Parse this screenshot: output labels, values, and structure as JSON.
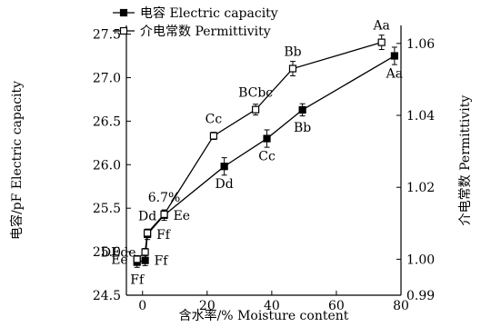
{
  "chart_data": {
    "type": "line",
    "xlabel": "含水率/% Moisture content",
    "ylabel": "电容/pF Electric capacity",
    "y2label": "介电常数 Permittivity",
    "xlim": [
      -5,
      80
    ],
    "ylim": [
      24.5,
      27.6
    ],
    "y2lim": [
      0.99,
      1.065
    ],
    "xticks": [
      0,
      20,
      40,
      60,
      80
    ],
    "yticks": [
      24.5,
      25.0,
      25.5,
      26.0,
      26.5,
      27.0,
      27.5
    ],
    "y2ticks": [
      0.99,
      1.0,
      1.02,
      1.04,
      1.06
    ],
    "ytick_labels": [
      "24.5",
      "25.0",
      "25.5",
      "26.0",
      "26.5",
      "27.0",
      "27.5"
    ],
    "y2tick_labels": [
      "0.99",
      "1.00",
      "1.02",
      "1.04",
      "1.06"
    ],
    "legend_position": "top-left",
    "series": [
      {
        "name": "电容 Electric capacity",
        "axis": "left",
        "marker": "filled-square",
        "x": [
          -1.7,
          0.8,
          1.5,
          6.7,
          25.3,
          38.5,
          49.5,
          78.0
        ],
        "y": [
          24.88,
          24.9,
          25.2,
          25.42,
          25.98,
          26.3,
          26.63,
          27.25
        ],
        "err": [
          0.06,
          0.06,
          0.06,
          0.06,
          0.1,
          0.1,
          0.07,
          0.1
        ]
      },
      {
        "name": "介电常数 Permittivity",
        "axis": "right",
        "marker": "open-square",
        "x": [
          -1.7,
          0.8,
          1.5,
          6.7,
          22.0,
          35.0,
          46.5,
          74.0
        ],
        "y": [
          1.0,
          1.002,
          1.0073,
          1.0125,
          1.0343,
          1.0416,
          1.053,
          1.0603
        ],
        "err": [
          0.001,
          0.001,
          0.001,
          0.001,
          0.001,
          0.0015,
          0.002,
          0.002
        ]
      }
    ],
    "annotations": [
      {
        "text": "Aa",
        "series": 1,
        "point": 7,
        "pos": "above"
      },
      {
        "text": "Aa",
        "series": 0,
        "point": 7,
        "pos": "below"
      },
      {
        "text": "Bb",
        "series": 1,
        "point": 6,
        "pos": "above"
      },
      {
        "text": "Bb",
        "series": 0,
        "point": 6,
        "pos": "below"
      },
      {
        "text": "BCbc",
        "series": 1,
        "point": 5,
        "pos": "above"
      },
      {
        "text": "Cc",
        "series": 1,
        "point": 4,
        "pos": "above"
      },
      {
        "text": "Cc",
        "series": 0,
        "point": 5,
        "pos": "below"
      },
      {
        "text": "Dd",
        "series": 0,
        "point": 4,
        "pos": "below"
      },
      {
        "text": "6.7%",
        "series": 1,
        "point": 3,
        "pos": "above"
      },
      {
        "text": "Dd",
        "series": 1,
        "point": 2,
        "pos": "above"
      },
      {
        "text": "Ee",
        "series": 0,
        "point": 3,
        "pos": "right"
      },
      {
        "text": "Ff",
        "series": 0,
        "point": 2,
        "pos": "right"
      },
      {
        "text": "DEde",
        "series": 1,
        "point": 1,
        "pos": "left"
      },
      {
        "text": "Ff",
        "series": 0,
        "point": 1,
        "pos": "right"
      },
      {
        "text": "Ee",
        "series": 1,
        "point": 0,
        "pos": "left"
      },
      {
        "text": "Ff",
        "series": 0,
        "point": 0,
        "pos": "below"
      }
    ]
  }
}
